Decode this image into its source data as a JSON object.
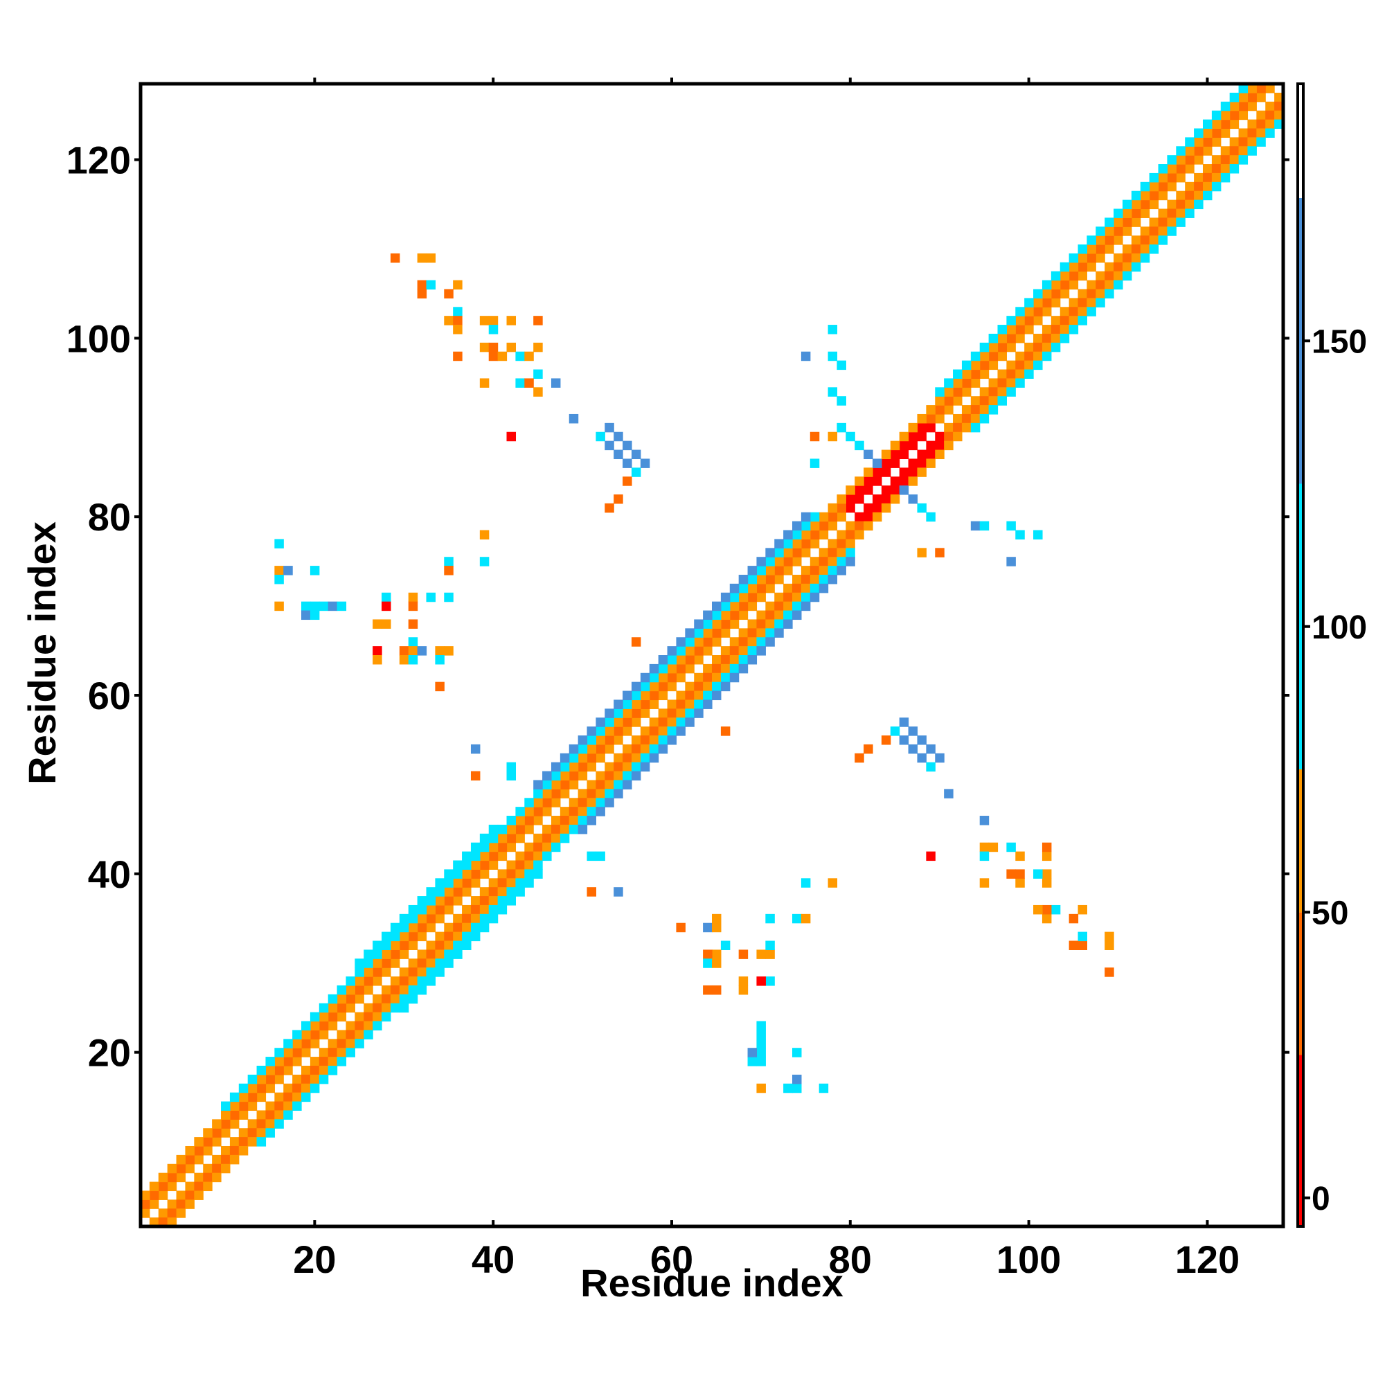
{
  "chart_data": {
    "type": "heatmap",
    "title": "",
    "xlabel": "Residue index",
    "ylabel": "Residue index",
    "xlim": [
      1,
      128
    ],
    "ylim": [
      1,
      128
    ],
    "x_ticks": [
      20,
      40,
      60,
      80,
      100,
      120
    ],
    "y_ticks": [
      20,
      40,
      60,
      80,
      100,
      120
    ],
    "grid": false,
    "symmetric": true,
    "colorbar": {
      "range": [
        -5,
        195
      ],
      "ticks": [
        0,
        50,
        100,
        150
      ],
      "bands": [
        {
          "from": -5,
          "to": 25,
          "color": "#ff0000"
        },
        {
          "from": 25,
          "to": 50,
          "color": "#ff6a00"
        },
        {
          "from": 50,
          "to": 75,
          "color": "#ff9900"
        },
        {
          "from": 75,
          "to": 125,
          "color": "#00e5ff"
        },
        {
          "from": 125,
          "to": 175,
          "color": "#4a90d9"
        },
        {
          "from": 175,
          "to": 195,
          "color": "#ffffff"
        }
      ]
    },
    "bands_near_diagonal": [
      {
        "from": 1,
        "to": 128,
        "offset": 1,
        "value": 60
      },
      {
        "from": 1,
        "to": 128,
        "offset": 2,
        "value": 35
      },
      {
        "from": 1,
        "to": 128,
        "offset": 3,
        "value": 58
      },
      {
        "from": 10,
        "to": 80,
        "offset": 4,
        "value": 95
      },
      {
        "from": 25,
        "to": 45,
        "offset": 5,
        "value": 100
      },
      {
        "from": 45,
        "to": 80,
        "offset": 5,
        "value": 140
      },
      {
        "from": 90,
        "to": 128,
        "offset": 4,
        "value": 100
      },
      {
        "from": 80,
        "to": 90,
        "offset": 1,
        "value": 10
      },
      {
        "from": 80,
        "to": 90,
        "offset": 2,
        "value": 20
      }
    ],
    "cells": [
      {
        "x": 53,
        "y": 90,
        "v": 140
      },
      {
        "x": 54,
        "y": 89,
        "v": 150
      },
      {
        "x": 55,
        "y": 88,
        "v": 150
      },
      {
        "x": 56,
        "y": 87,
        "v": 140
      },
      {
        "x": 57,
        "y": 86,
        "v": 130
      },
      {
        "x": 52,
        "y": 89,
        "v": 100
      },
      {
        "x": 53,
        "y": 88,
        "v": 140
      },
      {
        "x": 54,
        "y": 87,
        "v": 150
      },
      {
        "x": 55,
        "y": 86,
        "v": 145
      },
      {
        "x": 56,
        "y": 85,
        "v": 100
      },
      {
        "x": 55,
        "y": 84,
        "v": 40
      },
      {
        "x": 54,
        "y": 82,
        "v": 40
      },
      {
        "x": 53,
        "y": 81,
        "v": 45
      },
      {
        "x": 49,
        "y": 91,
        "v": 150
      },
      {
        "x": 80,
        "y": 89,
        "v": 100
      },
      {
        "x": 81,
        "y": 88,
        "v": 120
      },
      {
        "x": 82,
        "y": 87,
        "v": 140
      },
      {
        "x": 83,
        "y": 86,
        "v": 150
      },
      {
        "x": 86,
        "y": 83,
        "v": 150
      },
      {
        "x": 87,
        "y": 82,
        "v": 140
      },
      {
        "x": 88,
        "y": 81,
        "v": 120
      },
      {
        "x": 89,
        "y": 80,
        "v": 100
      },
      {
        "x": 79,
        "y": 90,
        "v": 100
      },
      {
        "x": 78,
        "y": 98,
        "v": 100
      },
      {
        "x": 79,
        "y": 97,
        "v": 100
      },
      {
        "x": 78,
        "y": 94,
        "v": 100
      },
      {
        "x": 79,
        "y": 93,
        "v": 100
      },
      {
        "x": 75,
        "y": 98,
        "v": 130
      },
      {
        "x": 78,
        "y": 101,
        "v": 100
      },
      {
        "x": 94,
        "y": 79,
        "v": 130
      },
      {
        "x": 95,
        "y": 79,
        "v": 100
      },
      {
        "x": 98,
        "y": 79,
        "v": 100
      },
      {
        "x": 99,
        "y": 78,
        "v": 100
      },
      {
        "x": 101,
        "y": 78,
        "v": 100
      },
      {
        "x": 98,
        "y": 75,
        "v": 130
      },
      {
        "x": 76,
        "y": 89,
        "v": 40
      },
      {
        "x": 78,
        "y": 89,
        "v": 55
      },
      {
        "x": 76,
        "y": 86,
        "v": 100
      },
      {
        "x": 88,
        "y": 76,
        "v": 55
      },
      {
        "x": 90,
        "y": 76,
        "v": 40
      },
      {
        "x": 86,
        "y": 57,
        "v": 130
      },
      {
        "x": 87,
        "y": 56,
        "v": 150
      },
      {
        "x": 88,
        "y": 55,
        "v": 150
      },
      {
        "x": 89,
        "y": 54,
        "v": 140
      },
      {
        "x": 90,
        "y": 53,
        "v": 130
      },
      {
        "x": 85,
        "y": 56,
        "v": 100
      },
      {
        "x": 86,
        "y": 55,
        "v": 140
      },
      {
        "x": 87,
        "y": 54,
        "v": 150
      },
      {
        "x": 88,
        "y": 53,
        "v": 145
      },
      {
        "x": 89,
        "y": 52,
        "v": 100
      },
      {
        "x": 84,
        "y": 55,
        "v": 40
      },
      {
        "x": 82,
        "y": 54,
        "v": 40
      },
      {
        "x": 81,
        "y": 53,
        "v": 45
      },
      {
        "x": 91,
        "y": 49,
        "v": 150
      },
      {
        "x": 29,
        "y": 109,
        "v": 40
      },
      {
        "x": 32,
        "y": 109,
        "v": 55
      },
      {
        "x": 33,
        "y": 109,
        "v": 55
      },
      {
        "x": 32,
        "y": 106,
        "v": 45
      },
      {
        "x": 33,
        "y": 106,
        "v": 100
      },
      {
        "x": 36,
        "y": 106,
        "v": 55
      },
      {
        "x": 32,
        "y": 105,
        "v": 45
      },
      {
        "x": 35,
        "y": 105,
        "v": 40
      },
      {
        "x": 36,
        "y": 103,
        "v": 100
      },
      {
        "x": 35,
        "y": 102,
        "v": 55
      },
      {
        "x": 36,
        "y": 102,
        "v": 45
      },
      {
        "x": 39,
        "y": 102,
        "v": 55
      },
      {
        "x": 40,
        "y": 102,
        "v": 55
      },
      {
        "x": 42,
        "y": 102,
        "v": 55
      },
      {
        "x": 45,
        "y": 102,
        "v": 40
      },
      {
        "x": 36,
        "y": 101,
        "v": 55
      },
      {
        "x": 40,
        "y": 101,
        "v": 100
      },
      {
        "x": 39,
        "y": 99,
        "v": 55
      },
      {
        "x": 40,
        "y": 99,
        "v": 45
      },
      {
        "x": 42,
        "y": 99,
        "v": 55
      },
      {
        "x": 45,
        "y": 99,
        "v": 55
      },
      {
        "x": 36,
        "y": 98,
        "v": 45
      },
      {
        "x": 40,
        "y": 98,
        "v": 45
      },
      {
        "x": 41,
        "y": 98,
        "v": 55
      },
      {
        "x": 43,
        "y": 98,
        "v": 100
      },
      {
        "x": 44,
        "y": 98,
        "v": 55
      },
      {
        "x": 45,
        "y": 96,
        "v": 100
      },
      {
        "x": 39,
        "y": 95,
        "v": 55
      },
      {
        "x": 43,
        "y": 95,
        "v": 100
      },
      {
        "x": 44,
        "y": 95,
        "v": 40
      },
      {
        "x": 47,
        "y": 95,
        "v": 130
      },
      {
        "x": 45,
        "y": 94,
        "v": 55
      },
      {
        "x": 42,
        "y": 89,
        "v": 10
      },
      {
        "x": 109,
        "y": 29,
        "v": 40
      },
      {
        "x": 109,
        "y": 32,
        "v": 55
      },
      {
        "x": 109,
        "y": 33,
        "v": 55
      },
      {
        "x": 106,
        "y": 32,
        "v": 45
      },
      {
        "x": 106,
        "y": 33,
        "v": 100
      },
      {
        "x": 106,
        "y": 36,
        "v": 55
      },
      {
        "x": 105,
        "y": 32,
        "v": 45
      },
      {
        "x": 105,
        "y": 35,
        "v": 40
      },
      {
        "x": 103,
        "y": 36,
        "v": 100
      },
      {
        "x": 102,
        "y": 35,
        "v": 55
      },
      {
        "x": 102,
        "y": 36,
        "v": 45
      },
      {
        "x": 102,
        "y": 39,
        "v": 55
      },
      {
        "x": 102,
        "y": 40,
        "v": 55
      },
      {
        "x": 102,
        "y": 42,
        "v": 55
      },
      {
        "x": 102,
        "y": 43,
        "v": 40
      },
      {
        "x": 101,
        "y": 36,
        "v": 55
      },
      {
        "x": 101,
        "y": 40,
        "v": 100
      },
      {
        "x": 99,
        "y": 39,
        "v": 55
      },
      {
        "x": 99,
        "y": 40,
        "v": 45
      },
      {
        "x": 99,
        "y": 42,
        "v": 55
      },
      {
        "x": 95,
        "y": 43,
        "v": 55
      },
      {
        "x": 96,
        "y": 43,
        "v": 55
      },
      {
        "x": 98,
        "y": 43,
        "v": 100
      },
      {
        "x": 95,
        "y": 42,
        "v": 100
      },
      {
        "x": 98,
        "y": 40,
        "v": 45
      },
      {
        "x": 95,
        "y": 39,
        "v": 55
      },
      {
        "x": 95,
        "y": 46,
        "v": 130
      },
      {
        "x": 89,
        "y": 42,
        "v": 10
      },
      {
        "x": 16,
        "y": 77,
        "v": 100
      },
      {
        "x": 16,
        "y": 74,
        "v": 55
      },
      {
        "x": 17,
        "y": 74,
        "v": 130
      },
      {
        "x": 16,
        "y": 73,
        "v": 100
      },
      {
        "x": 20,
        "y": 74,
        "v": 100
      },
      {
        "x": 16,
        "y": 70,
        "v": 55
      },
      {
        "x": 19,
        "y": 70,
        "v": 100
      },
      {
        "x": 20,
        "y": 70,
        "v": 100
      },
      {
        "x": 21,
        "y": 70,
        "v": 100
      },
      {
        "x": 22,
        "y": 70,
        "v": 130
      },
      {
        "x": 23,
        "y": 70,
        "v": 100
      },
      {
        "x": 19,
        "y": 69,
        "v": 130
      },
      {
        "x": 20,
        "y": 69,
        "v": 100
      },
      {
        "x": 28,
        "y": 71,
        "v": 100
      },
      {
        "x": 31,
        "y": 71,
        "v": 55
      },
      {
        "x": 33,
        "y": 71,
        "v": 100
      },
      {
        "x": 28,
        "y": 70,
        "v": 10
      },
      {
        "x": 31,
        "y": 70,
        "v": 45
      },
      {
        "x": 27,
        "y": 68,
        "v": 55
      },
      {
        "x": 28,
        "y": 68,
        "v": 55
      },
      {
        "x": 31,
        "y": 68,
        "v": 40
      },
      {
        "x": 31,
        "y": 66,
        "v": 100
      },
      {
        "x": 27,
        "y": 65,
        "v": 10
      },
      {
        "x": 30,
        "y": 65,
        "v": 45
      },
      {
        "x": 31,
        "y": 65,
        "v": 55
      },
      {
        "x": 32,
        "y": 65,
        "v": 130
      },
      {
        "x": 34,
        "y": 65,
        "v": 55
      },
      {
        "x": 35,
        "y": 65,
        "v": 55
      },
      {
        "x": 27,
        "y": 64,
        "v": 55
      },
      {
        "x": 30,
        "y": 64,
        "v": 55
      },
      {
        "x": 31,
        "y": 64,
        "v": 100
      },
      {
        "x": 34,
        "y": 64,
        "v": 100
      },
      {
        "x": 34,
        "y": 61,
        "v": 40
      },
      {
        "x": 35,
        "y": 75,
        "v": 100
      },
      {
        "x": 35,
        "y": 74,
        "v": 45
      },
      {
        "x": 35,
        "y": 71,
        "v": 100
      },
      {
        "x": 39,
        "y": 78,
        "v": 55
      },
      {
        "x": 39,
        "y": 75,
        "v": 100
      },
      {
        "x": 77,
        "y": 16,
        "v": 100
      },
      {
        "x": 74,
        "y": 16,
        "v": 100
      },
      {
        "x": 74,
        "y": 17,
        "v": 130
      },
      {
        "x": 73,
        "y": 16,
        "v": 100
      },
      {
        "x": 70,
        "y": 16,
        "v": 55
      },
      {
        "x": 70,
        "y": 19,
        "v": 100
      },
      {
        "x": 70,
        "y": 20,
        "v": 100
      },
      {
        "x": 70,
        "y": 21,
        "v": 100
      },
      {
        "x": 70,
        "y": 22,
        "v": 100
      },
      {
        "x": 70,
        "y": 23,
        "v": 100
      },
      {
        "x": 69,
        "y": 19,
        "v": 100
      },
      {
        "x": 69,
        "y": 20,
        "v": 130
      },
      {
        "x": 74,
        "y": 20,
        "v": 100
      },
      {
        "x": 71,
        "y": 28,
        "v": 100
      },
      {
        "x": 70,
        "y": 28,
        "v": 10
      },
      {
        "x": 68,
        "y": 27,
        "v": 55
      },
      {
        "x": 68,
        "y": 28,
        "v": 55
      },
      {
        "x": 65,
        "y": 27,
        "v": 45
      },
      {
        "x": 64,
        "y": 27,
        "v": 45
      },
      {
        "x": 71,
        "y": 31,
        "v": 55
      },
      {
        "x": 70,
        "y": 31,
        "v": 55
      },
      {
        "x": 68,
        "y": 31,
        "v": 40
      },
      {
        "x": 71,
        "y": 32,
        "v": 100
      },
      {
        "x": 66,
        "y": 32,
        "v": 100
      },
      {
        "x": 65,
        "y": 31,
        "v": 55
      },
      {
        "x": 64,
        "y": 31,
        "v": 45
      },
      {
        "x": 64,
        "y": 30,
        "v": 100
      },
      {
        "x": 65,
        "y": 30,
        "v": 55
      },
      {
        "x": 61,
        "y": 34,
        "v": 40
      },
      {
        "x": 64,
        "y": 34,
        "v": 130
      },
      {
        "x": 65,
        "y": 34,
        "v": 55
      },
      {
        "x": 65,
        "y": 35,
        "v": 55
      },
      {
        "x": 71,
        "y": 35,
        "v": 100
      },
      {
        "x": 74,
        "y": 35,
        "v": 100
      },
      {
        "x": 75,
        "y": 35,
        "v": 55
      },
      {
        "x": 75,
        "y": 39,
        "v": 100
      },
      {
        "x": 78,
        "y": 39,
        "v": 55
      },
      {
        "x": 38,
        "y": 54,
        "v": 130
      },
      {
        "x": 38,
        "y": 51,
        "v": 40
      },
      {
        "x": 42,
        "y": 52,
        "v": 100
      },
      {
        "x": 42,
        "y": 51,
        "v": 100
      },
      {
        "x": 54,
        "y": 38,
        "v": 130
      },
      {
        "x": 51,
        "y": 38,
        "v": 40
      },
      {
        "x": 52,
        "y": 42,
        "v": 100
      },
      {
        "x": 51,
        "y": 42,
        "v": 100
      },
      {
        "x": 56,
        "y": 66,
        "v": 40
      },
      {
        "x": 66,
        "y": 56,
        "v": 40
      }
    ]
  }
}
